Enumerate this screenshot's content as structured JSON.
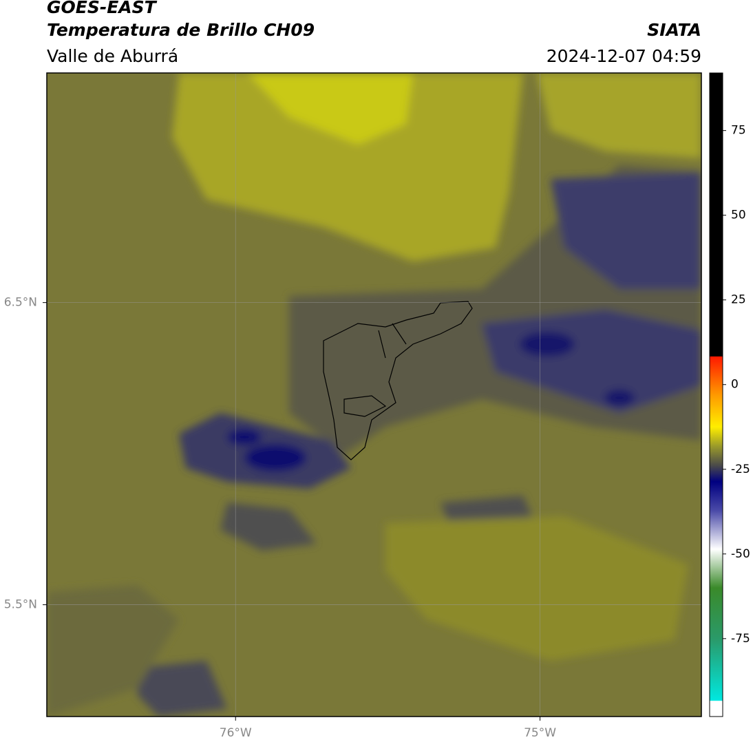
{
  "header": {
    "title": "GOES-EAST",
    "subtitle": "Temperatura de Brillo CH09",
    "region": "Valle de Aburrá",
    "source": "SIATA",
    "datetime": "2024-12-07 04:59"
  },
  "map": {
    "xlim": [
      -76.62,
      -74.47
    ],
    "ylim": [
      5.13,
      7.26
    ],
    "lon_ticks": [
      {
        "value": -76,
        "label": "76°W"
      },
      {
        "value": -75,
        "label": "75°W"
      }
    ],
    "lat_ticks": [
      {
        "value": 6.5,
        "label": "6.5°N"
      },
      {
        "value": 5.5,
        "label": "5.5°N"
      }
    ],
    "grid": true
  },
  "colorbar": {
    "lim": [
      -98,
      92
    ],
    "ticks": [
      75,
      50,
      25,
      0,
      -25,
      -50,
      -75
    ]
  }
}
